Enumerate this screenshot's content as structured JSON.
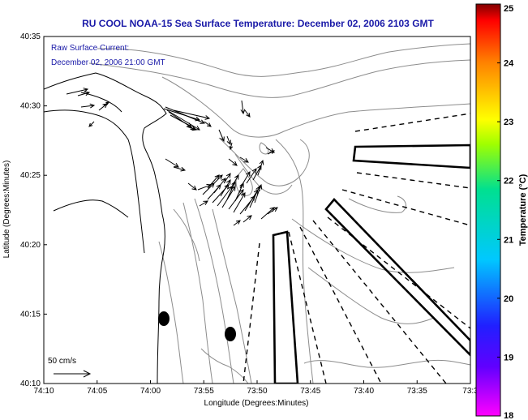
{
  "title": "RU COOL  NOAA-15  Sea Surface Temperature:  December 02, 2006 2103 GMT",
  "current_note": {
    "line1": "Raw Surface Current:",
    "line2": "December 02, 2006 21:00 GMT"
  },
  "axes": {
    "xlabel": "Longitude (Degrees:Minutes)",
    "ylabel": "Latitude (Degrees:Minutes)",
    "x_ticks": [
      "74:10",
      "74:05",
      "74:00",
      "73:55",
      "73:50",
      "73:45",
      "73:40",
      "73:35",
      "73:3"
    ],
    "y_ticks": [
      "40:35",
      "40:30",
      "40:25",
      "40:20",
      "40:15",
      "40:10"
    ]
  },
  "scale_bar": {
    "label": "50 cm/s"
  },
  "colorbar": {
    "label": "Temperature (°C)",
    "ticks": [
      "25",
      "24",
      "23",
      "22",
      "21",
      "20",
      "19",
      "18"
    ],
    "stops": [
      "#ff00ff",
      "#2020ff",
      "#00c8ff",
      "#00e090",
      "#a0ff00",
      "#ffff00",
      "#ff8000",
      "#ff0000",
      "#800000"
    ]
  },
  "colors": {
    "title": "#1a1aa8",
    "contour": "#8c8c8c",
    "coast": "#000000"
  }
}
